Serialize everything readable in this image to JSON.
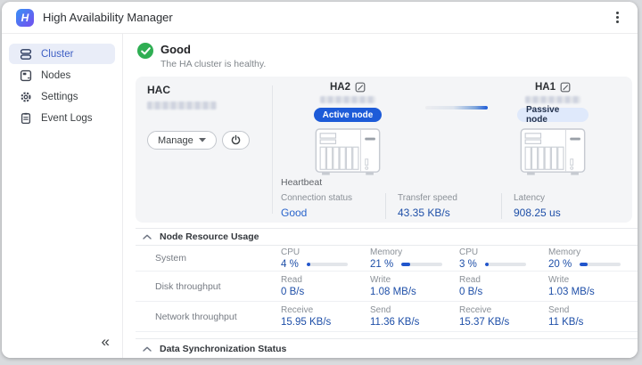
{
  "app": {
    "title": "High Availability Manager",
    "logo_letter": "H"
  },
  "sidebar": {
    "items": [
      {
        "label": "Cluster"
      },
      {
        "label": "Nodes"
      },
      {
        "label": "Settings"
      },
      {
        "label": "Event Logs"
      }
    ],
    "collapse_glyph": "«"
  },
  "status": {
    "title": "Good",
    "subtitle": "The HA cluster is healthy."
  },
  "cluster": {
    "name": "HAC",
    "manage_label": "Manage",
    "nodes": [
      {
        "name": "HA2",
        "role_label": "Active node",
        "role": "active"
      },
      {
        "name": "HA1",
        "role_label": "Passive node",
        "role": "passive"
      }
    ]
  },
  "heartbeat": {
    "title": "Heartbeat",
    "stats": [
      {
        "label": "Connection status",
        "value": "Good"
      },
      {
        "label": "Transfer speed",
        "value": "43.35 KB/s"
      },
      {
        "label": "Latency",
        "value": "908.25 us"
      }
    ]
  },
  "resource": {
    "title": "Node Resource Usage",
    "rows": [
      {
        "label": "System",
        "cells": [
          {
            "label": "CPU",
            "value": "4 %",
            "percent": 4
          },
          {
            "label": "Memory",
            "value": "21 %",
            "percent": 21
          },
          {
            "label": "CPU",
            "value": "3 %",
            "percent": 3
          },
          {
            "label": "Memory",
            "value": "20 %",
            "percent": 20
          }
        ]
      },
      {
        "label": "Disk throughput",
        "cells": [
          {
            "label": "Read",
            "value": "0 B/s"
          },
          {
            "label": "Write",
            "value": "1.08 MB/s"
          },
          {
            "label": "Read",
            "value": "0 B/s"
          },
          {
            "label": "Write",
            "value": "1.03 MB/s"
          }
        ]
      },
      {
        "label": "Network throughput",
        "cells": [
          {
            "label": "Receive",
            "value": "15.95 KB/s"
          },
          {
            "label": "Send",
            "value": "11.36 KB/s"
          },
          {
            "label": "Receive",
            "value": "15.37 KB/s"
          },
          {
            "label": "Send",
            "value": "11 KB/s"
          }
        ]
      }
    ]
  },
  "sync": {
    "title": "Data Synchronization Status"
  },
  "icons": {
    "logo": "app-logo",
    "cluster": "server-stack",
    "nodes": "nas-box",
    "settings": "gear",
    "event_logs": "document-log",
    "more": "kebab-vertical",
    "status_ok": "check-circle",
    "edit": "edit-pencil",
    "power": "power",
    "section": "chevron-up",
    "collapse": "double-chevron-left"
  },
  "colors": {
    "accent": "#1d5bd8",
    "value_blue": "#1e4fa8",
    "good_green": "#2fae53",
    "active_pill_bg": "#1d5bd8",
    "passive_pill_bg": "#dfe9fb",
    "selected_nav_bg": "#e9edf8"
  }
}
